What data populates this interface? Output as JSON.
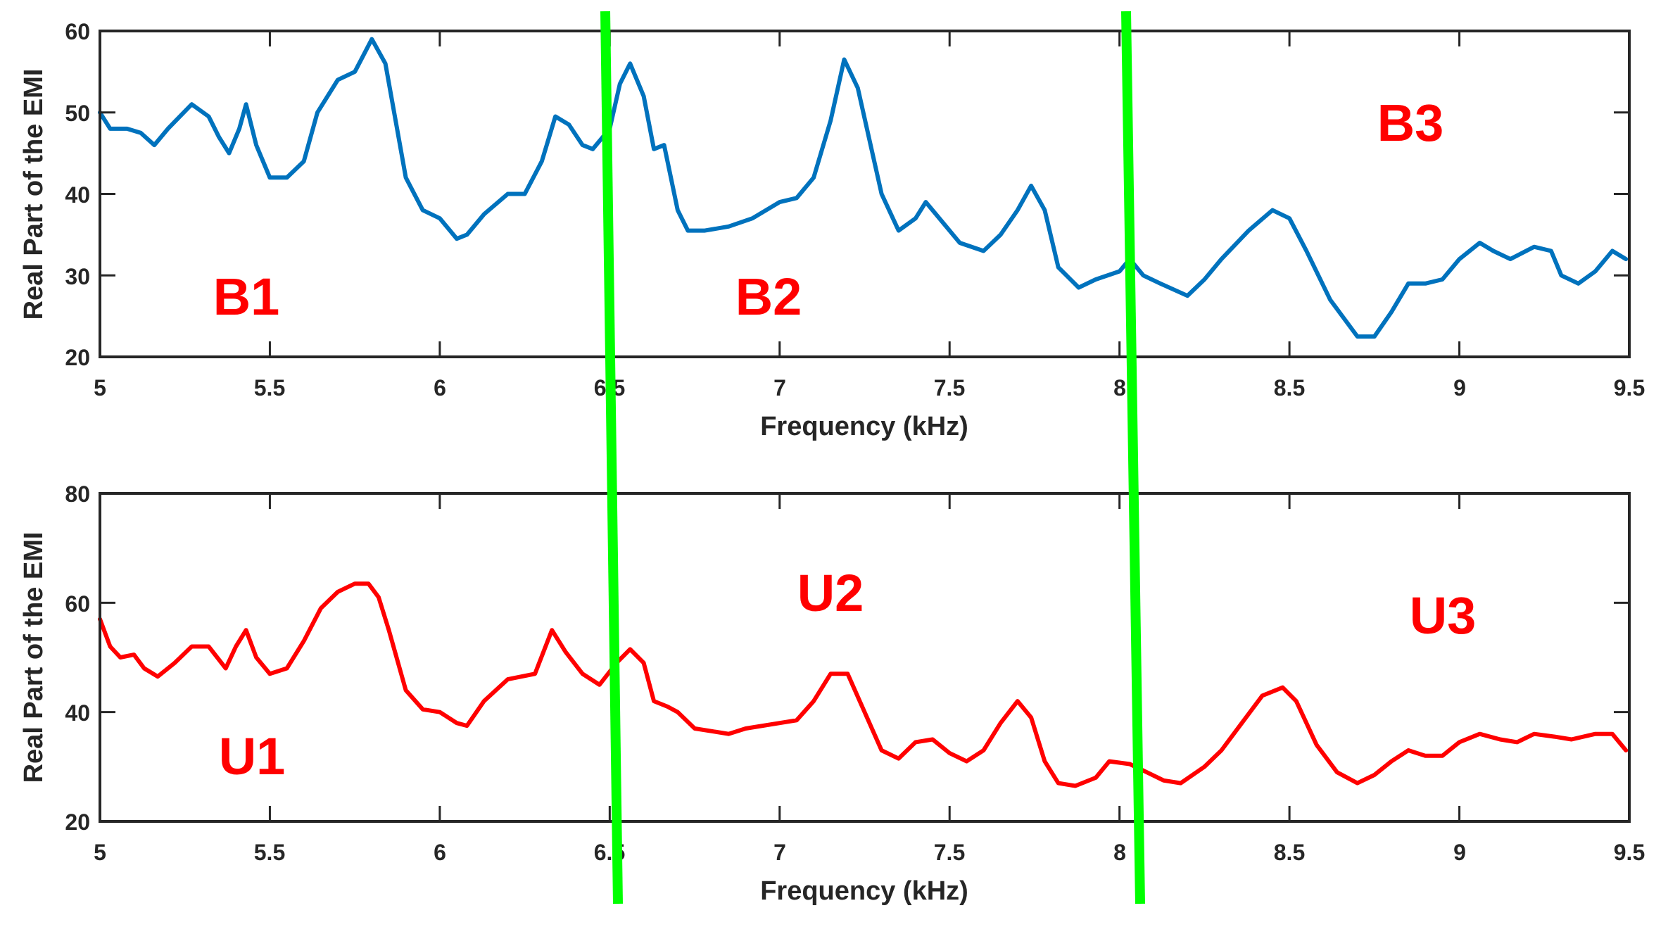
{
  "colors": {
    "top_series": "#0072BD",
    "bottom_series": "#FF0000",
    "region_label": "#FF0000",
    "divider": "#00FF00",
    "axes": "#262626"
  },
  "chart_data": [
    {
      "type": "line",
      "title": "",
      "xlabel": "Frequency (kHz)",
      "ylabel": "Real Part of the EMI",
      "xlim": [
        5,
        9.5
      ],
      "ylim": [
        20,
        60
      ],
      "xticks": [
        "5",
        "5.5",
        "6",
        "6.5",
        "7",
        "7.5",
        "8",
        "8.5",
        "9",
        "9.5"
      ],
      "yticks": [
        "20",
        "30",
        "40",
        "50",
        "60"
      ],
      "grid": false,
      "legend": "none",
      "region_labels": [
        "B1",
        "B2",
        "B3"
      ],
      "series": [
        {
          "color": "#0072BD",
          "x": [
            5.0,
            5.03,
            5.08,
            5.12,
            5.16,
            5.2,
            5.27,
            5.32,
            5.35,
            5.38,
            5.41,
            5.43,
            5.46,
            5.5,
            5.55,
            5.6,
            5.64,
            5.7,
            5.75,
            5.8,
            5.84,
            5.9,
            5.95,
            6.0,
            6.05,
            6.08,
            6.13,
            6.2,
            6.25,
            6.3,
            6.34,
            6.38,
            6.42,
            6.45,
            6.5,
            6.53,
            6.56,
            6.6,
            6.63,
            6.66,
            6.7,
            6.73,
            6.78,
            6.85,
            6.92,
            7.0,
            7.05,
            7.1,
            7.15,
            7.19,
            7.23,
            7.3,
            7.35,
            7.4,
            7.43,
            7.47,
            7.53,
            7.6,
            7.65,
            7.7,
            7.74,
            7.78,
            7.82,
            7.88,
            7.93,
            8.0,
            8.03,
            8.07,
            8.12,
            8.2,
            8.25,
            8.3,
            8.38,
            8.45,
            8.5,
            8.55,
            8.62,
            8.7,
            8.75,
            8.8,
            8.85,
            8.9,
            8.95,
            9.0,
            9.06,
            9.1,
            9.15,
            9.22,
            9.27,
            9.3,
            9.35,
            9.4,
            9.45,
            9.49
          ],
          "y": [
            50,
            48,
            48,
            47.5,
            46,
            48,
            51,
            49.5,
            47,
            45,
            48,
            51,
            46,
            42,
            42,
            44,
            50,
            54,
            55,
            59,
            56,
            42,
            38,
            37,
            34.5,
            35,
            37.5,
            40,
            40,
            44,
            49.5,
            48.5,
            46,
            45.5,
            48,
            53.5,
            56,
            52,
            45.5,
            46,
            38,
            35.5,
            35.5,
            36,
            37,
            39,
            39.5,
            42,
            49,
            56.5,
            53,
            40,
            35.5,
            37,
            39,
            37,
            34,
            33,
            35,
            38,
            41,
            38,
            31,
            28.5,
            29.5,
            30.5,
            32,
            30,
            29,
            27.5,
            29.5,
            32,
            35.5,
            38,
            37,
            33,
            27,
            22.5,
            22.5,
            25.5,
            29,
            29,
            29.5,
            32,
            34,
            33,
            32,
            33.5,
            33,
            30,
            29,
            30.5,
            33,
            32
          ]
        }
      ]
    },
    {
      "type": "line",
      "title": "",
      "xlabel": "Frequency (kHz)",
      "ylabel": "Real Part of the EMI",
      "xlim": [
        5,
        9.5
      ],
      "ylim": [
        20,
        80
      ],
      "xticks": [
        "5",
        "5.5",
        "6",
        "6.5",
        "7",
        "7.5",
        "8",
        "8.5",
        "9",
        "9.5"
      ],
      "yticks": [
        "20",
        "40",
        "60",
        "80"
      ],
      "grid": false,
      "legend": "none",
      "region_labels": [
        "U1",
        "U2",
        "U3"
      ],
      "series": [
        {
          "color": "#FF0000",
          "x": [
            5.0,
            5.03,
            5.06,
            5.1,
            5.13,
            5.17,
            5.22,
            5.27,
            5.32,
            5.37,
            5.4,
            5.43,
            5.46,
            5.5,
            5.55,
            5.6,
            5.65,
            5.7,
            5.75,
            5.79,
            5.82,
            5.85,
            5.9,
            5.95,
            6.0,
            6.05,
            6.08,
            6.13,
            6.2,
            6.28,
            6.33,
            6.37,
            6.42,
            6.47,
            6.52,
            6.56,
            6.6,
            6.63,
            6.67,
            6.7,
            6.75,
            6.8,
            6.85,
            6.9,
            7.0,
            7.05,
            7.1,
            7.15,
            7.2,
            7.25,
            7.3,
            7.35,
            7.4,
            7.45,
            7.5,
            7.55,
            7.6,
            7.65,
            7.7,
            7.74,
            7.78,
            7.82,
            7.87,
            7.93,
            7.97,
            8.03,
            8.08,
            8.13,
            8.18,
            8.25,
            8.3,
            8.36,
            8.42,
            8.48,
            8.52,
            8.58,
            8.64,
            8.7,
            8.75,
            8.8,
            8.85,
            8.9,
            8.95,
            9.0,
            9.06,
            9.12,
            9.17,
            9.22,
            9.28,
            9.33,
            9.4,
            9.45,
            9.49
          ],
          "y": [
            57,
            52,
            50,
            50.5,
            48,
            46.5,
            49,
            52,
            52,
            48,
            52,
            55,
            50,
            47,
            48,
            53,
            59,
            62,
            63.5,
            63.5,
            61,
            55,
            44,
            40.5,
            40,
            38,
            37.5,
            42,
            46,
            47,
            55,
            51,
            47,
            45,
            49,
            51.5,
            49,
            42,
            41,
            40,
            37,
            36.5,
            36,
            37,
            38,
            38.5,
            42,
            47,
            47,
            40,
            33,
            31.5,
            34.5,
            35,
            32.5,
            31,
            33,
            38,
            42,
            39,
            31,
            27,
            26.5,
            28,
            31,
            30.5,
            29,
            27.5,
            27,
            30,
            33,
            38,
            43,
            44.5,
            42,
            34,
            29,
            27,
            28.5,
            31,
            33,
            32,
            32,
            34.5,
            36,
            35,
            34.5,
            36,
            35.5,
            35,
            36,
            36,
            33
          ]
        }
      ]
    }
  ]
}
